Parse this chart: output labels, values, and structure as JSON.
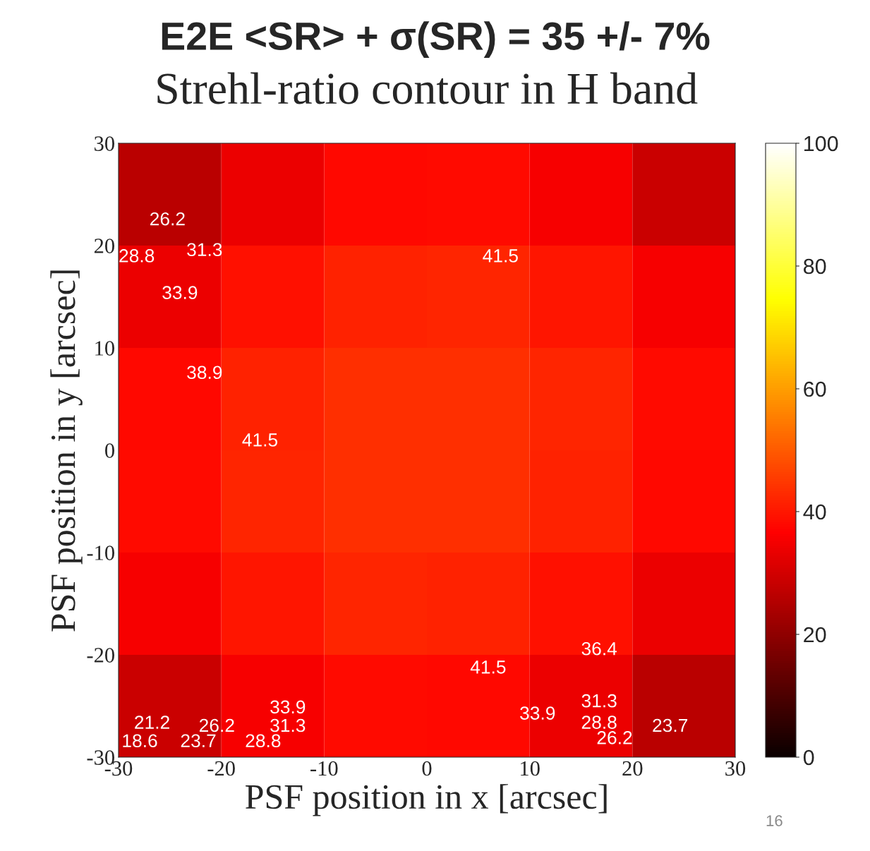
{
  "chart_data": {
    "type": "heatmap",
    "title": "E2E <SR> + σ(SR) = 35 +/- 7%",
    "subtitle": "Strehl-ratio contour in H band",
    "xlabel": "PSF position in x [arcsec]",
    "ylabel": "PSF position in y [arcsec]",
    "x": [
      -25,
      -15,
      -5,
      5,
      15,
      25
    ],
    "y": [
      25,
      15,
      5,
      -5,
      -15,
      -25
    ],
    "cells": [
      [
        26.2,
        33.7,
        37.7,
        38.2,
        35.2,
        28.7
      ],
      [
        33.7,
        38.8,
        41.5,
        41.8,
        39.7,
        35.2
      ],
      [
        37.7,
        41.5,
        43.5,
        43.6,
        41.8,
        38.2
      ],
      [
        38.2,
        41.8,
        43.6,
        43.5,
        41.5,
        37.7
      ],
      [
        35.2,
        39.7,
        41.8,
        41.5,
        38.8,
        33.7
      ],
      [
        28.7,
        35.2,
        38.2,
        37.7,
        33.7,
        26.2
      ]
    ],
    "xlim": [
      -30,
      30
    ],
    "ylim": [
      -30,
      30
    ],
    "xticks": [
      -30,
      -20,
      -10,
      0,
      10,
      20,
      30
    ],
    "yticks": [
      -30,
      -20,
      -10,
      0,
      10,
      20,
      30
    ],
    "clim": [
      0,
      100
    ],
    "cticks": [
      0,
      20,
      40,
      60,
      80,
      100
    ],
    "annotations": [
      "26.2",
      "28.8",
      "31.3",
      "33.9",
      "38.9",
      "41.5",
      "41.5",
      "36.4",
      "41.5",
      "33.9",
      "31.3",
      "28.8",
      "26.2",
      "23.7",
      "21.2",
      "18.6",
      "33.9",
      "31.3",
      "28.8",
      "26.2",
      "23.7",
      "16"
    ]
  }
}
